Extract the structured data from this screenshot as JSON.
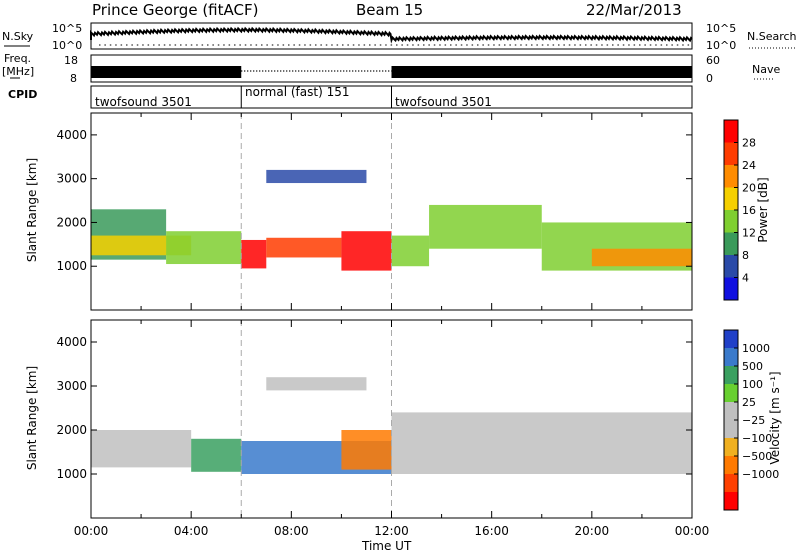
{
  "header": {
    "station": "Prince George (fitACF)",
    "beam": "Beam 15",
    "date": "22/Mar/2013"
  },
  "side_labels": {
    "nsky": "N.Sky",
    "nsearch": "N.Search",
    "freq": "Freq.",
    "freq_unit": "[MHz]",
    "nave": "Nave",
    "cpid": "CPID"
  },
  "noise_axis": {
    "top": "10^5",
    "bottom": "10^0"
  },
  "freq_axis": {
    "left_ticks": [
      "18",
      "8"
    ],
    "right_ticks": [
      "60",
      "0"
    ]
  },
  "cpid_segments": [
    {
      "label": "twofsound 3501",
      "start_hour": 0,
      "end_hour": 6
    },
    {
      "label": "normal (fast) 151",
      "start_hour": 6,
      "end_hour": 12
    },
    {
      "label": "twofsound 3501",
      "start_hour": 12,
      "end_hour": 24
    }
  ],
  "power_panel": {
    "ylabel": "Slant Range [km]",
    "cbar_label": "Power [dB]",
    "cbar_ticks": [
      "28",
      "24",
      "20",
      "16",
      "12",
      "8",
      "4"
    ],
    "cbar_colors": [
      "#ff0000",
      "#ff3c00",
      "#ff8c00",
      "#f5d000",
      "#7fcf30",
      "#3a9a5a",
      "#2a4aa8",
      "#1010e0"
    ]
  },
  "velocity_panel": {
    "ylabel": "Slant Range [km]",
    "cbar_label": "Velocity [m s⁻¹]",
    "cbar_ticks": [
      "1000",
      "500",
      "100",
      "25",
      "−25",
      "−100",
      "−500",
      "−1000"
    ],
    "cbar_colors": [
      "#2040c8",
      "#3a7acb",
      "#3aa060",
      "#68d030",
      "#c0c0c0",
      "#c0c0c0",
      "#f0b020",
      "#ff7a00",
      "#ff4000",
      "#ff0000"
    ]
  },
  "x_axis": {
    "xlabel": "Time UT",
    "ticks": [
      "00:00",
      "04:00",
      "08:00",
      "12:00",
      "16:00",
      "20:00",
      "00:00"
    ]
  },
  "chart_data": [
    {
      "type": "heatmap",
      "title": "Power [dB]",
      "xlabel": "Time UT",
      "ylabel": "Slant Range [km]",
      "xlim": [
        0,
        24
      ],
      "ylim": [
        0,
        4500
      ],
      "yticks": [
        1000,
        2000,
        3000,
        4000
      ],
      "clim": [
        0,
        30
      ],
      "bands": [
        {
          "t0": 0,
          "t1": 3,
          "r0": 1150,
          "r1": 2300,
          "value": 10
        },
        {
          "t0": 0,
          "t1": 4,
          "r0": 1250,
          "r1": 1700,
          "value": 16
        },
        {
          "t0": 3,
          "t1": 6,
          "r0": 1050,
          "r1": 1800,
          "value": 14
        },
        {
          "t0": 6,
          "t1": 7,
          "r0": 950,
          "r1": 1600,
          "value": 28
        },
        {
          "t0": 7,
          "t1": 10,
          "r0": 1200,
          "r1": 1650,
          "value": 26
        },
        {
          "t0": 10,
          "t1": 12,
          "r0": 900,
          "r1": 1800,
          "value": 28
        },
        {
          "t0": 12,
          "t1": 13.5,
          "r0": 1000,
          "r1": 1700,
          "value": 12
        },
        {
          "t0": 13.5,
          "t1": 18,
          "r0": 1400,
          "r1": 2400,
          "value": 14
        },
        {
          "t0": 18,
          "t1": 24,
          "r0": 900,
          "r1": 2000,
          "value": 12
        },
        {
          "t0": 20,
          "t1": 24,
          "r0": 1000,
          "r1": 1400,
          "value": 20
        },
        {
          "t0": 7,
          "t1": 11,
          "r0": 2900,
          "r1": 3200,
          "value": 6
        }
      ]
    },
    {
      "type": "heatmap",
      "title": "Velocity [m s⁻¹]",
      "xlabel": "Time UT",
      "ylabel": "Slant Range [km]",
      "xlim": [
        0,
        24
      ],
      "ylim": [
        0,
        4500
      ],
      "yticks": [
        1000,
        2000,
        3000,
        4000
      ],
      "clim": [
        -1000,
        1000
      ],
      "bands": [
        {
          "t0": 0,
          "t1": 4,
          "r0": 1150,
          "r1": 2000,
          "value": 0
        },
        {
          "t0": 4,
          "t1": 6,
          "r0": 1050,
          "r1": 1800,
          "value": 50
        },
        {
          "t0": 6,
          "t1": 12,
          "r0": 1000,
          "r1": 1750,
          "value": 150
        },
        {
          "t0": 10,
          "t1": 12,
          "r0": 1100,
          "r1": 2000,
          "value": -100
        },
        {
          "t0": 12,
          "t1": 24,
          "r0": 1000,
          "r1": 2400,
          "value": 0
        },
        {
          "t0": 7,
          "t1": 11,
          "r0": 2900,
          "r1": 3200,
          "value": 0
        }
      ]
    }
  ]
}
